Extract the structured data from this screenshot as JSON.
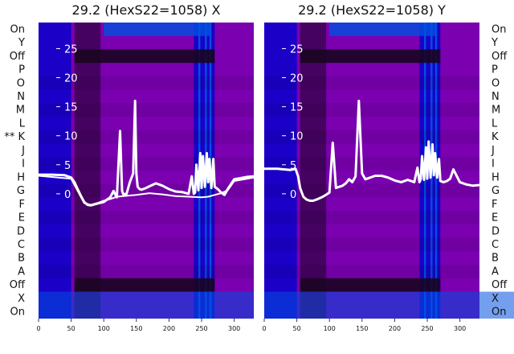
{
  "chart_data": [
    {
      "type": "heatmap",
      "title": "29.2 (HexS22=1058) X",
      "row_labels": [
        "On",
        "Y",
        "Off",
        "P",
        "O",
        "N",
        "M",
        "L",
        "K",
        "J",
        "I",
        "H",
        "G",
        "F",
        "E",
        "D",
        "C",
        "B",
        "A",
        "Off",
        "X",
        "On"
      ],
      "marked_row_prefix": "**",
      "marked_row": "K",
      "x_ticks": [
        0,
        50,
        100,
        150,
        200,
        250,
        300
      ],
      "xlim": [
        0,
        330
      ],
      "y_ticks": [
        0,
        5,
        10,
        15,
        20,
        25
      ],
      "y_tick_labels": [
        "0",
        "5",
        "10",
        "15",
        "20",
        "25"
      ],
      "ylim": [
        -21.5,
        29.5
      ],
      "colormap": [
        "#0a0a3a",
        "#1b00c8",
        "#0050e0",
        "#7a00b0",
        "#1a0420"
      ],
      "series": [
        {
          "x": [
            0,
            20,
            40,
            50,
            55,
            60,
            65,
            70,
            75,
            80,
            90,
            100,
            110,
            115,
            118,
            120,
            125,
            128,
            130,
            135,
            140,
            145,
            148,
            150,
            152,
            155,
            158,
            160,
            165,
            170,
            180,
            190,
            200,
            210,
            220,
            230,
            235,
            238,
            240,
            242,
            245,
            248,
            250,
            252,
            255,
            258,
            260,
            262,
            265,
            268,
            270,
            275,
            280,
            285,
            290,
            300,
            310,
            320,
            330
          ],
          "y": [
            3.3,
            3.3,
            3.2,
            2.8,
            2.0,
            0.8,
            -0.4,
            -1.4,
            -1.9,
            -2.0,
            -1.7,
            -1.4,
            -0.6,
            0.5,
            -0.2,
            -0.6,
            10.8,
            0.5,
            -0.1,
            0.0,
            2.0,
            3.5,
            16.0,
            3.5,
            1.2,
            0.8,
            0.7,
            0.8,
            1.0,
            1.3,
            1.8,
            1.4,
            0.8,
            0.4,
            0.3,
            0.0,
            3.0,
            0.0,
            0.2,
            5.0,
            0.6,
            7.0,
            1.0,
            6.5,
            1.2,
            7.0,
            2.0,
            6.0,
            1.0,
            6.0,
            1.2,
            0.8,
            0.2,
            -0.2,
            0.8,
            2.5,
            2.7,
            2.9,
            3.0
          ]
        },
        {
          "x": [
            0,
            50,
            60,
            70,
            80,
            90,
            100,
            110,
            120,
            130,
            150,
            170,
            190,
            210,
            230,
            250,
            260,
            270,
            280,
            290,
            300,
            320,
            330
          ],
          "y": [
            3.1,
            2.6,
            0.5,
            -1.6,
            -1.9,
            -1.6,
            -1.2,
            -0.9,
            -0.5,
            -0.4,
            -0.2,
            0.1,
            -0.1,
            -0.4,
            -0.5,
            -0.6,
            -0.5,
            -0.2,
            0.1,
            0.6,
            2.2,
            2.6,
            2.8
          ]
        }
      ]
    },
    {
      "type": "heatmap",
      "title": "29.2 (HexS22=1058) Y",
      "row_labels": [
        "On",
        "Y",
        "Off",
        "P",
        "O",
        "N",
        "M",
        "L",
        "K",
        "J",
        "I",
        "H",
        "G",
        "F",
        "E",
        "D",
        "C",
        "B",
        "A",
        "Off",
        "X",
        "On"
      ],
      "x_ticks": [
        0,
        50,
        100,
        150,
        200,
        250,
        300
      ],
      "xlim": [
        0,
        330
      ],
      "y_ticks": [
        0,
        5,
        10,
        15,
        20,
        25
      ],
      "y_tick_labels": [
        "0",
        "5",
        "10",
        "15",
        "20",
        "25"
      ],
      "ylim": [
        -21.5,
        29.5
      ],
      "colormap": [
        "#0a0a3a",
        "#1b00c8",
        "#0050e0",
        "#7a00b0",
        "#1a0420"
      ],
      "series": [
        {
          "x": [
            0,
            20,
            40,
            48,
            52,
            55,
            60,
            65,
            70,
            75,
            80,
            90,
            100,
            105,
            110,
            115,
            120,
            125,
            130,
            135,
            140,
            145,
            150,
            155,
            160,
            170,
            180,
            190,
            200,
            210,
            220,
            230,
            235,
            238,
            240,
            242,
            245,
            248,
            250,
            252,
            255,
            258,
            260,
            262,
            265,
            268,
            270,
            275,
            280,
            285,
            290,
            300,
            310,
            320,
            330
          ],
          "y": [
            4.3,
            4.3,
            4.1,
            4.3,
            3.0,
            1.0,
            -0.5,
            -1.0,
            -1.2,
            -1.2,
            -1.0,
            -0.5,
            0.2,
            8.8,
            1.0,
            1.2,
            1.4,
            1.8,
            2.5,
            2.0,
            3.0,
            16.0,
            3.5,
            2.5,
            2.7,
            3.1,
            3.1,
            2.8,
            2.3,
            2.0,
            2.4,
            2.0,
            4.5,
            2.0,
            2.5,
            6.5,
            2.4,
            8.0,
            2.6,
            9.0,
            2.8,
            8.5,
            3.2,
            7.0,
            2.8,
            6.0,
            2.2,
            2.0,
            2.2,
            2.6,
            4.2,
            2.0,
            1.6,
            1.4,
            1.5
          ]
        }
      ]
    }
  ],
  "colors": {
    "line": "#ffffff",
    "background": "#ffffff"
  }
}
